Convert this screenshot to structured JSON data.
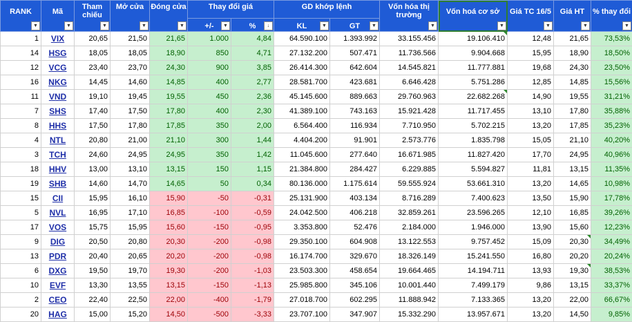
{
  "headers": {
    "rank": "RANK",
    "ma": "Mã",
    "tham_chieu": "Tham chiếu",
    "mo_cua": "Mở cửa",
    "dong_cua": "Đóng cửa",
    "thay_doi_gia": "Thay đổi giá",
    "thay_doi_abs": "+/-",
    "thay_doi_pct": "%",
    "gd_khop_lenh": "GD khớp lệnh",
    "kl": "KL",
    "gt": "GT",
    "von_hoa_thi_truong": "Vốn hóa thị trường",
    "von_hoa_co_so": "Vốn hoá cơ sở",
    "gia_tc": "Giá TC 16/5",
    "gia_ht": "Giá HT",
    "pct_thay_doi": "% thay đổi"
  },
  "dropdown_icon": "▼",
  "sort_icon": "↓",
  "rows": [
    {
      "rank": "1",
      "ma": "VIX",
      "tc": "20,65",
      "mo": "21,50",
      "dong": "21,65",
      "abs": "1.000",
      "pct": "4,84",
      "kl": "64.590.100",
      "gt": "1.393.992",
      "vhtt": "33.155.456",
      "vhcs": "19.106.410",
      "giatc": "12,48",
      "giaht": "21,65",
      "tdoi": "73,53%",
      "dir": "up"
    },
    {
      "rank": "14",
      "ma": "HSG",
      "tc": "18,05",
      "mo": "18,05",
      "dong": "18,90",
      "abs": "850",
      "pct": "4,71",
      "kl": "27.132.200",
      "gt": "507.471",
      "vhtt": "11.736.566",
      "vhcs": "9.904.668",
      "giatc": "15,95",
      "giaht": "18,90",
      "tdoi": "18,50%",
      "dir": "up"
    },
    {
      "rank": "12",
      "ma": "VCG",
      "tc": "23,40",
      "mo": "23,70",
      "dong": "24,30",
      "abs": "900",
      "pct": "3,85",
      "kl": "26.414.300",
      "gt": "642.604",
      "vhtt": "14.545.821",
      "vhcs": "11.777.881",
      "giatc": "19,68",
      "giaht": "24,30",
      "tdoi": "23,50%",
      "dir": "up"
    },
    {
      "rank": "16",
      "ma": "NKG",
      "tc": "14,45",
      "mo": "14,60",
      "dong": "14,85",
      "abs": "400",
      "pct": "2,77",
      "kl": "28.581.700",
      "gt": "423.681",
      "vhtt": "6.646.428",
      "vhcs": "5.751.286",
      "giatc": "12,85",
      "giaht": "14,85",
      "tdoi": "15,56%",
      "dir": "up"
    },
    {
      "rank": "11",
      "ma": "VND",
      "tc": "19,10",
      "mo": "19,45",
      "dong": "19,55",
      "abs": "450",
      "pct": "2,36",
      "kl": "45.145.600",
      "gt": "889.663",
      "vhtt": "29.760.963",
      "vhcs": "22.682.268",
      "giatc": "14,90",
      "giaht": "19,55",
      "tdoi": "31,21%",
      "dir": "up"
    },
    {
      "rank": "7",
      "ma": "SHS",
      "tc": "17,40",
      "mo": "17,50",
      "dong": "17,80",
      "abs": "400",
      "pct": "2,30",
      "kl": "41.389.100",
      "gt": "743.163",
      "vhtt": "15.921.428",
      "vhcs": "11.717.455",
      "giatc": "13,10",
      "giaht": "17,80",
      "tdoi": "35,88%",
      "dir": "up"
    },
    {
      "rank": "8",
      "ma": "HHS",
      "tc": "17,50",
      "mo": "17,80",
      "dong": "17,85",
      "abs": "350",
      "pct": "2,00",
      "kl": "6.564.400",
      "gt": "116.934",
      "vhtt": "7.710.950",
      "vhcs": "5.702.215",
      "giatc": "13,20",
      "giaht": "17,85",
      "tdoi": "35,23%",
      "dir": "up"
    },
    {
      "rank": "4",
      "ma": "NTL",
      "tc": "20,80",
      "mo": "21,00",
      "dong": "21,10",
      "abs": "300",
      "pct": "1,44",
      "kl": "4.404.200",
      "gt": "91.901",
      "vhtt": "2.573.776",
      "vhcs": "1.835.798",
      "giatc": "15,05",
      "giaht": "21,10",
      "tdoi": "40,20%",
      "dir": "up"
    },
    {
      "rank": "3",
      "ma": "TCH",
      "tc": "24,60",
      "mo": "24,95",
      "dong": "24,95",
      "abs": "350",
      "pct": "1,42",
      "kl": "11.045.600",
      "gt": "277.640",
      "vhtt": "16.671.985",
      "vhcs": "11.827.420",
      "giatc": "17,70",
      "giaht": "24,95",
      "tdoi": "40,96%",
      "dir": "up"
    },
    {
      "rank": "18",
      "ma": "HHV",
      "tc": "13,00",
      "mo": "13,10",
      "dong": "13,15",
      "abs": "150",
      "pct": "1,15",
      "kl": "21.384.800",
      "gt": "284.427",
      "vhtt": "6.229.885",
      "vhcs": "5.594.827",
      "giatc": "11,81",
      "giaht": "13,15",
      "tdoi": "11,35%",
      "dir": "up"
    },
    {
      "rank": "19",
      "ma": "SHB",
      "tc": "14,60",
      "mo": "14,70",
      "dong": "14,65",
      "abs": "50",
      "pct": "0,34",
      "kl": "80.136.000",
      "gt": "1.175.614",
      "vhtt": "59.555.924",
      "vhcs": "53.661.310",
      "giatc": "13,20",
      "giaht": "14,65",
      "tdoi": "10,98%",
      "dir": "up"
    },
    {
      "rank": "15",
      "ma": "CII",
      "tc": "15,95",
      "mo": "16,10",
      "dong": "15,90",
      "abs": "-50",
      "pct": "-0,31",
      "kl": "25.131.900",
      "gt": "403.134",
      "vhtt": "8.716.289",
      "vhcs": "7.400.623",
      "giatc": "13,50",
      "giaht": "15,90",
      "tdoi": "17,78%",
      "dir": "dn"
    },
    {
      "rank": "5",
      "ma": "NVL",
      "tc": "16,95",
      "mo": "17,10",
      "dong": "16,85",
      "abs": "-100",
      "pct": "-0,59",
      "kl": "24.042.500",
      "gt": "406.218",
      "vhtt": "32.859.261",
      "vhcs": "23.596.265",
      "giatc": "12,10",
      "giaht": "16,85",
      "tdoi": "39,26%",
      "dir": "dn"
    },
    {
      "rank": "17",
      "ma": "VOS",
      "tc": "15,75",
      "mo": "15,95",
      "dong": "15,60",
      "abs": "-150",
      "pct": "-0,95",
      "kl": "3.353.800",
      "gt": "52.476",
      "vhtt": "2.184.000",
      "vhcs": "1.946.000",
      "giatc": "13,90",
      "giaht": "15,60",
      "tdoi": "12,23%",
      "dir": "dn"
    },
    {
      "rank": "9",
      "ma": "DIG",
      "tc": "20,50",
      "mo": "20,80",
      "dong": "20,30",
      "abs": "-200",
      "pct": "-0,98",
      "kl": "29.350.100",
      "gt": "604.908",
      "vhtt": "13.122.553",
      "vhcs": "9.757.452",
      "giatc": "15,09",
      "giaht": "20,30",
      "tdoi": "34,49%",
      "dir": "dn"
    },
    {
      "rank": "13",
      "ma": "PDR",
      "tc": "20,40",
      "mo": "20,65",
      "dong": "20,20",
      "abs": "-200",
      "pct": "-0,98",
      "kl": "16.174.700",
      "gt": "329.670",
      "vhtt": "18.326.149",
      "vhcs": "15.241.550",
      "giatc": "16,80",
      "giaht": "20,20",
      "tdoi": "20,24%",
      "dir": "dn"
    },
    {
      "rank": "6",
      "ma": "DXG",
      "tc": "19,50",
      "mo": "19,70",
      "dong": "19,30",
      "abs": "-200",
      "pct": "-1,03",
      "kl": "23.503.300",
      "gt": "458.654",
      "vhtt": "19.664.465",
      "vhcs": "14.194.711",
      "giatc": "13,93",
      "giaht": "19,30",
      "tdoi": "38,53%",
      "dir": "dn"
    },
    {
      "rank": "10",
      "ma": "EVF",
      "tc": "13,30",
      "mo": "13,55",
      "dong": "13,15",
      "abs": "-150",
      "pct": "-1,13",
      "kl": "25.985.800",
      "gt": "345.106",
      "vhtt": "10.001.440",
      "vhcs": "7.499.179",
      "giatc": "9,86",
      "giaht": "13,15",
      "tdoi": "33,37%",
      "dir": "dn"
    },
    {
      "rank": "2",
      "ma": "CEO",
      "tc": "22,40",
      "mo": "22,50",
      "dong": "22,00",
      "abs": "-400",
      "pct": "-1,79",
      "kl": "27.018.700",
      "gt": "602.295",
      "vhtt": "11.888.942",
      "vhcs": "7.133.365",
      "giatc": "13,20",
      "giaht": "22,00",
      "tdoi": "66,67%",
      "dir": "dn"
    },
    {
      "rank": "20",
      "ma": "HAG",
      "tc": "15,00",
      "mo": "15,20",
      "dong": "14,50",
      "abs": "-500",
      "pct": "-3,33",
      "kl": "23.707.100",
      "gt": "347.907",
      "vhtt": "15.332.290",
      "vhcs": "13.957.671",
      "giatc": "13,20",
      "giaht": "14,50",
      "tdoi": "9,85%",
      "dir": "dn"
    }
  ]
}
